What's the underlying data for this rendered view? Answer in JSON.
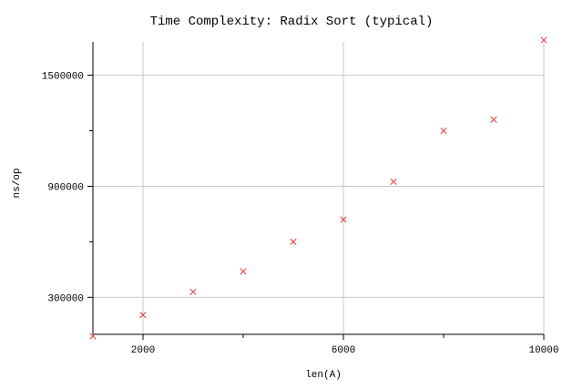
{
  "chart_data": {
    "type": "scatter",
    "title": "Time Complexity: Radix Sort (typical)",
    "xlabel": "len(A)",
    "ylabel": "ns/op",
    "xlim": [
      1000,
      10000
    ],
    "ylim": [
      100000,
      1680000
    ],
    "xticks": [
      2000,
      6000,
      10000
    ],
    "xtick_labels": [
      "2000",
      "6000",
      "10000"
    ],
    "xticks_minor": [
      4000,
      8000
    ],
    "yticks": [
      300000,
      900000,
      1500000
    ],
    "ytick_labels": [
      "300000",
      "900000",
      "1500000"
    ],
    "yticks_minor": [
      600000,
      1200000
    ],
    "grid": true,
    "marker": "x",
    "marker_color": "#e03a3a",
    "series": [
      {
        "x": [
          1000,
          2000,
          3000,
          4000,
          5000,
          6000,
          7000,
          8000,
          9000,
          10000
        ],
        "y": [
          90000,
          205000,
          330000,
          440000,
          600000,
          720000,
          925000,
          1200000,
          1260000,
          1690000
        ]
      }
    ]
  }
}
